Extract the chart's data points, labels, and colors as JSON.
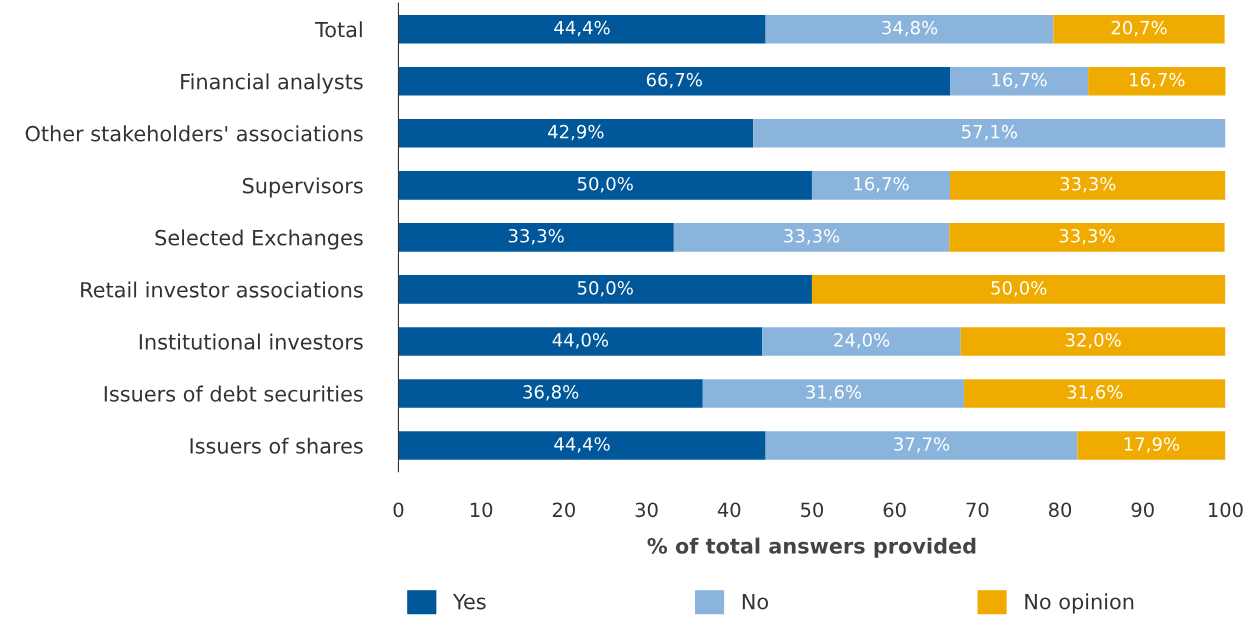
{
  "chart_data": {
    "type": "bar",
    "orientation": "horizontal",
    "stacked": true,
    "categories": [
      "Total",
      "Financial analysts",
      "Other stakeholders' associations",
      "Supervisors",
      "Selected Exchanges",
      "Retail investor associations",
      "Institutional investors",
      "Issuers of debt securities",
      "Issuers of shares"
    ],
    "series": [
      {
        "name": "Yes",
        "color": "#00589a",
        "values": [
          44.4,
          66.7,
          42.9,
          50.0,
          33.3,
          50.0,
          44.0,
          36.8,
          44.4
        ],
        "value_labels": [
          "44,4%",
          "66,7%",
          "42,9%",
          "50,0%",
          "33,3%",
          "50,0%",
          "44,0%",
          "36,8%",
          "44,4%"
        ]
      },
      {
        "name": "No",
        "color": "#8ab4dc",
        "values": [
          34.8,
          16.7,
          57.1,
          16.7,
          33.3,
          null,
          24.0,
          31.6,
          37.7
        ],
        "value_labels": [
          "34,8%",
          "16,7%",
          "57,1%",
          "16,7%",
          "33,3%",
          null,
          "24,0%",
          "31,6%",
          "37,7%"
        ]
      },
      {
        "name": "No opinion",
        "color": "#f0ab00",
        "values": [
          20.7,
          16.7,
          null,
          33.3,
          33.3,
          50.0,
          32.0,
          31.6,
          17.9
        ],
        "value_labels": [
          "20,7%",
          "16,7%",
          null,
          "33,3%",
          "33,3%",
          "50,0%",
          "32,0%",
          "31,6%",
          "17,9%"
        ]
      }
    ],
    "xlabel": "% of total answers provided",
    "xlim": [
      0,
      100
    ],
    "xticks": [
      0,
      10,
      20,
      30,
      40,
      50,
      60,
      70,
      80,
      90,
      100
    ],
    "grid": false,
    "legend": "bottom"
  }
}
